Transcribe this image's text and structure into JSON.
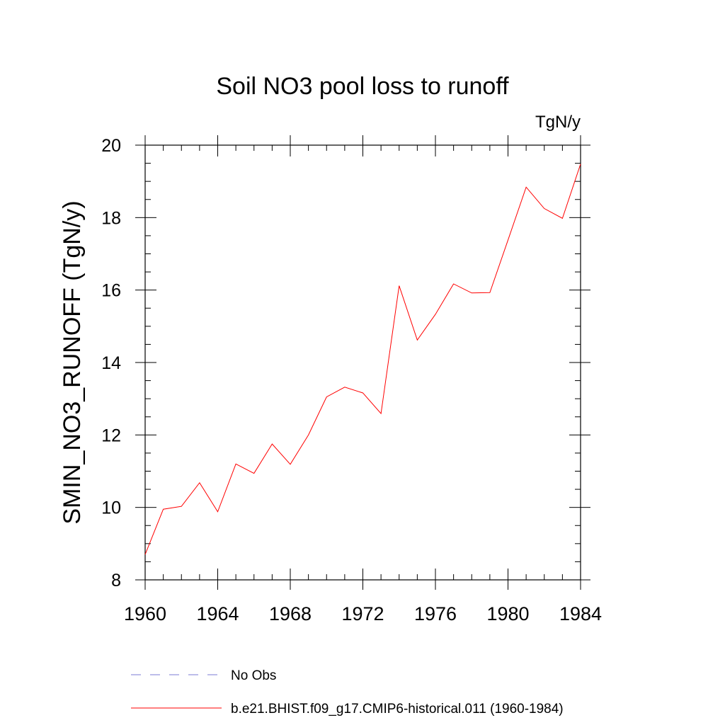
{
  "chart_data": {
    "type": "line",
    "title": "Soil NO3 pool loss to runoff",
    "units_label": "TgN/y",
    "ylabel": "SMIN_NO3_RUNOFF  (TgN/y)",
    "xlabel": "",
    "xlim": [
      1960,
      1984
    ],
    "ylim": [
      8,
      20
    ],
    "x_ticks": [
      "1960",
      "1964",
      "1968",
      "1972",
      "1976",
      "1980",
      "1984"
    ],
    "y_ticks": [
      "8",
      "10",
      "12",
      "14",
      "16",
      "18",
      "20"
    ],
    "x": [
      1960,
      1961,
      1962,
      1963,
      1964,
      1965,
      1966,
      1967,
      1968,
      1969,
      1970,
      1971,
      1972,
      1973,
      1974,
      1975,
      1976,
      1977,
      1978,
      1979,
      1980,
      1981,
      1982,
      1983,
      1984
    ],
    "series": [
      {
        "name": "b.e21.BHIST.f09_g17.CMIP6-historical.011 (1960-1984)",
        "color": "#ff0000",
        "values": [
          8.7,
          9.95,
          10.03,
          10.68,
          9.88,
          11.2,
          10.94,
          11.75,
          11.19,
          12.0,
          13.05,
          13.32,
          13.16,
          12.59,
          16.12,
          14.62,
          15.33,
          16.17,
          15.92,
          15.93,
          17.38,
          18.84,
          18.25,
          17.98,
          19.48
        ]
      }
    ],
    "legend": [
      {
        "label": "No Obs",
        "color": "#7b7bd6",
        "style": "dashed"
      },
      {
        "label": "b.e21.BHIST.f09_g17.CMIP6-historical.011 (1960-1984)",
        "color": "#ff0000",
        "style": "solid"
      }
    ],
    "legend_placement": "bottom",
    "grid": false
  }
}
